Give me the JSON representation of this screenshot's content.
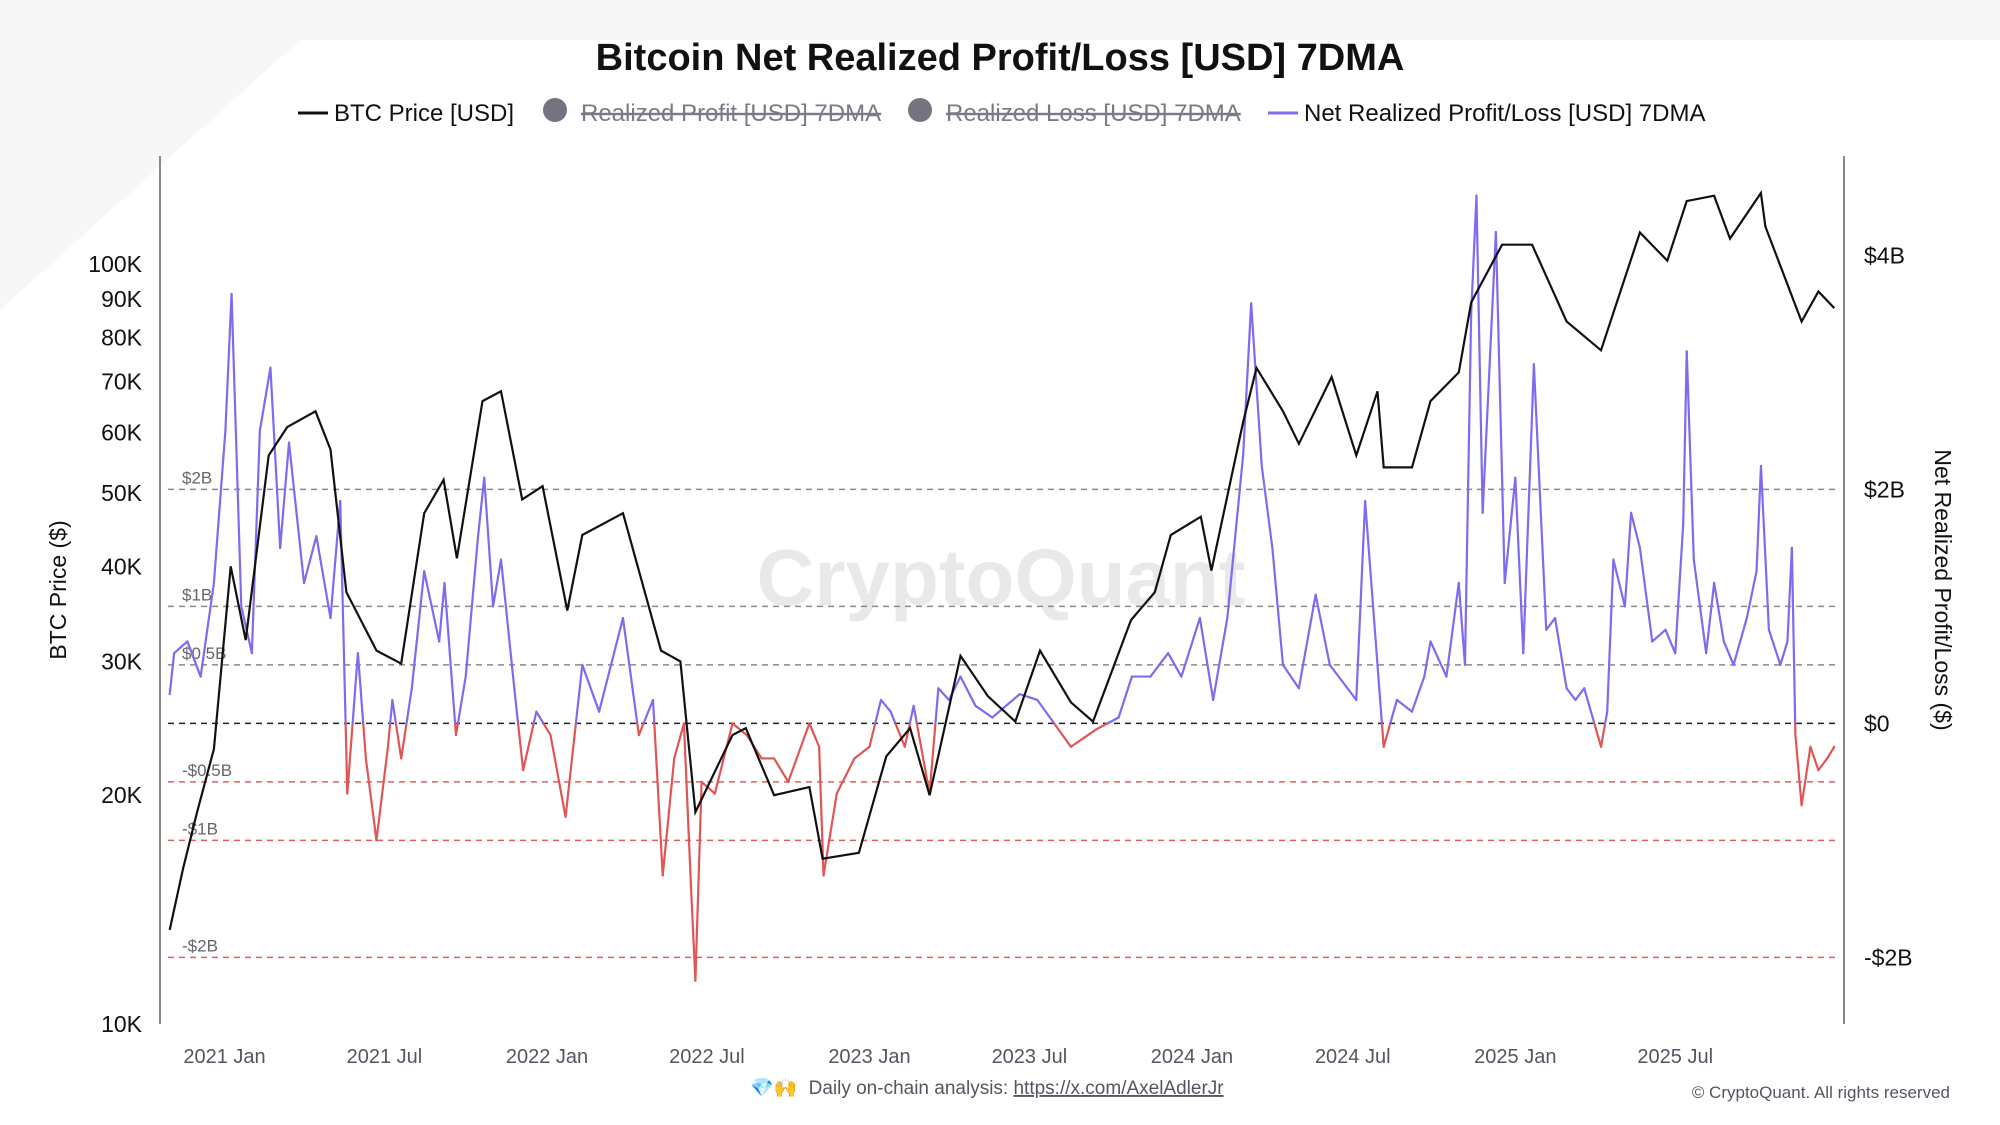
{
  "chart_data": {
    "type": "line",
    "title": "Bitcoin Net Realized Profit/Loss [USD] 7DMA",
    "legend": {
      "placement": "top",
      "entries": [
        {
          "label": "BTC Price [USD]",
          "color": "#111111",
          "active": true,
          "marker": "line"
        },
        {
          "label": "Realized Profit [USD] 7DMA",
          "color": "#74737f",
          "active": false,
          "marker": "dot"
        },
        {
          "label": "Realized Loss [USD] 7DMA",
          "color": "#74737f",
          "active": false,
          "marker": "dot"
        },
        {
          "label": "Net Realized Profit/Loss [USD] 7DMA",
          "color": "#7b6cf0",
          "active": true,
          "marker": "line"
        }
      ]
    },
    "xaxis": {
      "type": "date",
      "xlim": [
        "2020-10-20",
        "2026-01-08"
      ],
      "ticks": [
        {
          "date": "2021-01-01",
          "label": "2021 Jan"
        },
        {
          "date": "2021-07-01",
          "label": "2021 Jul"
        },
        {
          "date": "2022-01-01",
          "label": "2022 Jan"
        },
        {
          "date": "2022-07-01",
          "label": "2022 Jul"
        },
        {
          "date": "2023-01-01",
          "label": "2023 Jan"
        },
        {
          "date": "2023-07-01",
          "label": "2023 Jul"
        },
        {
          "date": "2024-01-01",
          "label": "2024 Jan"
        },
        {
          "date": "2024-07-01",
          "label": "2024 Jul"
        },
        {
          "date": "2025-01-01",
          "label": "2025 Jan"
        },
        {
          "date": "2025-07-01",
          "label": "2025 Jul"
        }
      ]
    },
    "yaxis_left": {
      "label": "BTC Price ($)",
      "scale": "log",
      "ylim": [
        10000,
        138700
      ],
      "ticks": [
        {
          "value": 10000,
          "label": "10K"
        },
        {
          "value": 20000,
          "label": "20K"
        },
        {
          "value": 30000,
          "label": "30K"
        },
        {
          "value": 40000,
          "label": "40K"
        },
        {
          "value": 50000,
          "label": "50K"
        },
        {
          "value": 60000,
          "label": "60K"
        },
        {
          "value": 70000,
          "label": "70K"
        },
        {
          "value": 80000,
          "label": "80K"
        },
        {
          "value": 90000,
          "label": "90K"
        },
        {
          "value": 100000,
          "label": "100K"
        }
      ]
    },
    "yaxis_right": {
      "label": "Net Realized Profit/Loss ($)",
      "scale": "linear",
      "unit": "billion USD",
      "ylim": [
        -2.57,
        4.85
      ],
      "ticks": [
        {
          "value": 4,
          "label": "$4B"
        },
        {
          "value": 2,
          "label": "$2B"
        },
        {
          "value": 0,
          "label": "$0"
        },
        {
          "value": -2,
          "label": "-$2B"
        }
      ]
    },
    "reference_lines": [
      {
        "value": 2,
        "label": "$2B",
        "color": "#8a8a8a"
      },
      {
        "value": 1,
        "label": "$1B",
        "color": "#8a8a8a"
      },
      {
        "value": 0.5,
        "label": "$0.5B",
        "color": "#8a8a8a"
      },
      {
        "value": 0,
        "label": "",
        "color": "#222222"
      },
      {
        "value": -0.5,
        "label": "-$0.5B",
        "color": "#e06060"
      },
      {
        "value": -1,
        "label": "-$1B",
        "color": "#e06060"
      },
      {
        "value": -2,
        "label": "-$2B",
        "color": "#e06060"
      }
    ],
    "colors": {
      "positive": "#7b6cf0",
      "negative": "#e05555",
      "price": "#111111"
    },
    "grid": false,
    "watermark": "CryptoQuant",
    "series": [
      {
        "name": "BTC Price [USD]",
        "axis": "left",
        "points": [
          [
            "2020-10-31",
            13300
          ],
          [
            "2020-11-15",
            16000
          ],
          [
            "2020-12-01",
            19000
          ],
          [
            "2020-12-20",
            23000
          ],
          [
            "2021-01-08",
            40000
          ],
          [
            "2021-01-25",
            32000
          ],
          [
            "2021-02-20",
            56000
          ],
          [
            "2021-03-13",
            61000
          ],
          [
            "2021-04-14",
            64000
          ],
          [
            "2021-05-01",
            57000
          ],
          [
            "2021-05-19",
            37000
          ],
          [
            "2021-06-22",
            31000
          ],
          [
            "2021-07-20",
            29800
          ],
          [
            "2021-08-15",
            47000
          ],
          [
            "2021-09-06",
            52000
          ],
          [
            "2021-09-21",
            41000
          ],
          [
            "2021-10-20",
            66000
          ],
          [
            "2021-11-10",
            68000
          ],
          [
            "2021-12-04",
            49000
          ],
          [
            "2021-12-27",
            51000
          ],
          [
            "2022-01-24",
            35000
          ],
          [
            "2022-02-10",
            44000
          ],
          [
            "2022-03-28",
            47000
          ],
          [
            "2022-05-10",
            31000
          ],
          [
            "2022-06-01",
            30000
          ],
          [
            "2022-06-18",
            19000
          ],
          [
            "2022-07-30",
            24000
          ],
          [
            "2022-08-14",
            24500
          ],
          [
            "2022-09-15",
            20000
          ],
          [
            "2022-10-25",
            20500
          ],
          [
            "2022-11-09",
            16500
          ],
          [
            "2022-12-20",
            16800
          ],
          [
            "2023-01-20",
            22500
          ],
          [
            "2023-02-16",
            24500
          ],
          [
            "2023-03-10",
            20000
          ],
          [
            "2023-04-14",
            30500
          ],
          [
            "2023-05-15",
            27000
          ],
          [
            "2023-06-15",
            25000
          ],
          [
            "2023-07-13",
            31000
          ],
          [
            "2023-08-17",
            26500
          ],
          [
            "2023-09-11",
            25000
          ],
          [
            "2023-10-24",
            34000
          ],
          [
            "2023-11-20",
            37000
          ],
          [
            "2023-12-08",
            44000
          ],
          [
            "2024-01-11",
            46500
          ],
          [
            "2024-01-23",
            39500
          ],
          [
            "2024-02-28",
            62000
          ],
          [
            "2024-03-14",
            73000
          ],
          [
            "2024-04-13",
            64000
          ],
          [
            "2024-05-01",
            58000
          ],
          [
            "2024-06-07",
            71000
          ],
          [
            "2024-07-05",
            56000
          ],
          [
            "2024-07-29",
            68000
          ],
          [
            "2024-08-05",
            54000
          ],
          [
            "2024-09-06",
            54000
          ],
          [
            "2024-09-27",
            66000
          ],
          [
            "2024-10-29",
            72000
          ],
          [
            "2024-11-12",
            89000
          ],
          [
            "2024-12-17",
            106000
          ],
          [
            "2025-01-20",
            106000
          ],
          [
            "2025-02-28",
            84000
          ],
          [
            "2025-04-08",
            77000
          ],
          [
            "2025-05-22",
            110000
          ],
          [
            "2025-06-22",
            101000
          ],
          [
            "2025-07-14",
            121000
          ],
          [
            "2025-08-14",
            123000
          ],
          [
            "2025-09-01",
            108000
          ],
          [
            "2025-10-06",
            124000
          ],
          [
            "2025-10-11",
            112000
          ],
          [
            "2025-11-21",
            84000
          ],
          [
            "2025-12-10",
            92000
          ],
          [
            "2025-12-28",
            87500
          ]
        ]
      },
      {
        "name": "Net Realized Profit/Loss [USD] 7DMA",
        "axis": "right",
        "points": [
          [
            "2020-10-31",
            0.25
          ],
          [
            "2020-11-05",
            0.6
          ],
          [
            "2020-11-20",
            0.7
          ],
          [
            "2020-12-05",
            0.4
          ],
          [
            "2020-12-20",
            1.2
          ],
          [
            "2021-01-02",
            2.5
          ],
          [
            "2021-01-09",
            3.67
          ],
          [
            "2021-01-20",
            1.0
          ],
          [
            "2021-02-01",
            0.6
          ],
          [
            "2021-02-10",
            2.5
          ],
          [
            "2021-02-22",
            3.04
          ],
          [
            "2021-03-05",
            1.5
          ],
          [
            "2021-03-15",
            2.4
          ],
          [
            "2021-04-01",
            1.2
          ],
          [
            "2021-04-15",
            1.6
          ],
          [
            "2021-05-01",
            0.9
          ],
          [
            "2021-05-12",
            1.9
          ],
          [
            "2021-05-20",
            -0.6
          ],
          [
            "2021-06-01",
            0.6
          ],
          [
            "2021-06-10",
            -0.3
          ],
          [
            "2021-06-22",
            -1.0
          ],
          [
            "2021-07-05",
            -0.2
          ],
          [
            "2021-07-10",
            0.2
          ],
          [
            "2021-07-20",
            -0.3
          ],
          [
            "2021-08-01",
            0.3
          ],
          [
            "2021-08-15",
            1.3
          ],
          [
            "2021-09-01",
            0.7
          ],
          [
            "2021-09-07",
            1.2
          ],
          [
            "2021-09-20",
            -0.1
          ],
          [
            "2021-10-01",
            0.4
          ],
          [
            "2021-10-15",
            1.6
          ],
          [
            "2021-10-22",
            2.1
          ],
          [
            "2021-11-01",
            1.0
          ],
          [
            "2021-11-10",
            1.4
          ],
          [
            "2021-11-25",
            0.3
          ],
          [
            "2021-12-05",
            -0.4
          ],
          [
            "2021-12-20",
            0.1
          ],
          [
            "2022-01-05",
            -0.1
          ],
          [
            "2022-01-22",
            -0.8
          ],
          [
            "2022-02-10",
            0.5
          ],
          [
            "2022-03-01",
            0.1
          ],
          [
            "2022-03-28",
            0.9
          ],
          [
            "2022-04-15",
            -0.1
          ],
          [
            "2022-05-01",
            0.2
          ],
          [
            "2022-05-12",
            -1.3
          ],
          [
            "2022-05-25",
            -0.3
          ],
          [
            "2022-06-05",
            0.0
          ],
          [
            "2022-06-13",
            -1.4
          ],
          [
            "2022-06-18",
            -2.2
          ],
          [
            "2022-06-25",
            -0.5
          ],
          [
            "2022-07-10",
            -0.6
          ],
          [
            "2022-07-30",
            0.0
          ],
          [
            "2022-08-15",
            -0.1
          ],
          [
            "2022-09-01",
            -0.3
          ],
          [
            "2022-09-15",
            -0.3
          ],
          [
            "2022-10-01",
            -0.5
          ],
          [
            "2022-10-25",
            0.0
          ],
          [
            "2022-11-05",
            -0.2
          ],
          [
            "2022-11-10",
            -1.3
          ],
          [
            "2022-11-25",
            -0.6
          ],
          [
            "2022-12-15",
            -0.3
          ],
          [
            "2023-01-01",
            -0.2
          ],
          [
            "2023-01-14",
            0.2
          ],
          [
            "2023-01-25",
            0.1
          ],
          [
            "2023-02-10",
            -0.2
          ],
          [
            "2023-02-20",
            0.15
          ],
          [
            "2023-03-10",
            -0.6
          ],
          [
            "2023-03-20",
            0.3
          ],
          [
            "2023-04-01",
            0.2
          ],
          [
            "2023-04-14",
            0.4
          ],
          [
            "2023-05-01",
            0.15
          ],
          [
            "2023-05-20",
            0.05
          ],
          [
            "2023-06-20",
            0.25
          ],
          [
            "2023-07-10",
            0.2
          ],
          [
            "2023-08-17",
            -0.2
          ],
          [
            "2023-09-15",
            -0.05
          ],
          [
            "2023-10-10",
            0.05
          ],
          [
            "2023-10-25",
            0.4
          ],
          [
            "2023-11-15",
            0.4
          ],
          [
            "2023-12-05",
            0.6
          ],
          [
            "2023-12-20",
            0.4
          ],
          [
            "2024-01-10",
            0.9
          ],
          [
            "2024-01-25",
            0.2
          ],
          [
            "2024-02-10",
            0.9
          ],
          [
            "2024-02-28",
            2.3
          ],
          [
            "2024-03-08",
            3.59
          ],
          [
            "2024-03-20",
            2.2
          ],
          [
            "2024-04-01",
            1.5
          ],
          [
            "2024-04-13",
            0.5
          ],
          [
            "2024-05-01",
            0.3
          ],
          [
            "2024-05-20",
            1.1
          ],
          [
            "2024-06-05",
            0.5
          ],
          [
            "2024-06-25",
            0.3
          ],
          [
            "2024-07-05",
            0.2
          ],
          [
            "2024-07-15",
            1.9
          ],
          [
            "2024-07-29",
            0.5
          ],
          [
            "2024-08-05",
            -0.2
          ],
          [
            "2024-08-20",
            0.2
          ],
          [
            "2024-09-06",
            0.1
          ],
          [
            "2024-09-20",
            0.4
          ],
          [
            "2024-09-27",
            0.7
          ],
          [
            "2024-10-15",
            0.4
          ],
          [
            "2024-10-29",
            1.2
          ],
          [
            "2024-11-05",
            0.5
          ],
          [
            "2024-11-12",
            3.5
          ],
          [
            "2024-11-18",
            4.51
          ],
          [
            "2024-11-25",
            1.8
          ],
          [
            "2024-12-05",
            3.4
          ],
          [
            "2024-12-10",
            4.2
          ],
          [
            "2024-12-20",
            1.2
          ],
          [
            "2025-01-01",
            2.1
          ],
          [
            "2025-01-10",
            0.6
          ],
          [
            "2025-01-22",
            3.07
          ],
          [
            "2025-02-05",
            0.8
          ],
          [
            "2025-02-15",
            0.9
          ],
          [
            "2025-02-28",
            0.3
          ],
          [
            "2025-03-10",
            0.2
          ],
          [
            "2025-03-20",
            0.3
          ],
          [
            "2025-04-08",
            -0.2
          ],
          [
            "2025-04-15",
            0.1
          ],
          [
            "2025-04-22",
            1.4
          ],
          [
            "2025-05-05",
            1.0
          ],
          [
            "2025-05-12",
            1.8
          ],
          [
            "2025-05-22",
            1.5
          ],
          [
            "2025-06-05",
            0.7
          ],
          [
            "2025-06-20",
            0.8
          ],
          [
            "2025-07-01",
            0.6
          ],
          [
            "2025-07-10",
            1.7
          ],
          [
            "2025-07-14",
            3.18
          ],
          [
            "2025-07-22",
            1.4
          ],
          [
            "2025-08-05",
            0.6
          ],
          [
            "2025-08-14",
            1.2
          ],
          [
            "2025-08-25",
            0.7
          ],
          [
            "2025-09-05",
            0.5
          ],
          [
            "2025-09-20",
            0.9
          ],
          [
            "2025-10-01",
            1.3
          ],
          [
            "2025-10-06",
            2.2
          ],
          [
            "2025-10-15",
            0.8
          ],
          [
            "2025-10-28",
            0.5
          ],
          [
            "2025-11-05",
            0.7
          ],
          [
            "2025-11-10",
            1.5
          ],
          [
            "2025-11-14",
            -0.1
          ],
          [
            "2025-11-21",
            -0.7
          ],
          [
            "2025-12-01",
            -0.2
          ],
          [
            "2025-12-10",
            -0.4
          ],
          [
            "2025-12-20",
            -0.3
          ],
          [
            "2025-12-28",
            -0.2
          ]
        ]
      }
    ]
  },
  "footer": {
    "emoji": "💎🙌",
    "prefix": "Daily on-chain analysis: ",
    "link": "https://x.com/AxelAdlerJr",
    "copyright": "© CryptoQuant. All rights reserved"
  }
}
